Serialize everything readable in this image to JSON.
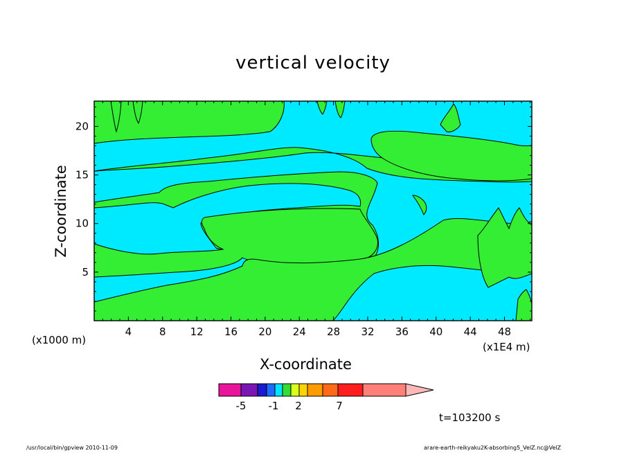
{
  "chart_data": {
    "type": "heatmap",
    "title": "vertical velocity",
    "xlabel": "X-coordinate",
    "ylabel": "Z-coordinate",
    "x_scale_note_left": "(x1000 m)",
    "x_scale_note_right": "(x1E4 m)",
    "x_ticks": [
      "4",
      "8",
      "12",
      "16",
      "20",
      "24",
      "28",
      "32",
      "36",
      "40",
      "44",
      "48"
    ],
    "y_ticks": [
      "5",
      "10",
      "15",
      "20"
    ],
    "xlim": [
      0,
      51.2
    ],
    "ylim": [
      0,
      22.6
    ],
    "time_label": "t=103200 s",
    "colorbar": {
      "labels": [
        "-5",
        "-1",
        "2",
        "7"
      ],
      "colors": [
        "#e8149a",
        "#7a16b4",
        "#1a1ad0",
        "#1e6cff",
        "#00e5ff",
        "#33dd33",
        "#d8ff1e",
        "#ffd400",
        "#ff9c00",
        "#ff6a18",
        "#ff1e1e",
        "#ff8078",
        "#ffb8b8"
      ]
    },
    "colors": {
      "positive": "#33ee33",
      "negative": "#00eaff",
      "contour": "#000000"
    }
  },
  "footer": {
    "left": "/usr/local/bin/gpview   2010-11-09",
    "right": "arare-earth-reikyaku2K-absorbing5_VelZ.nc@VelZ"
  }
}
